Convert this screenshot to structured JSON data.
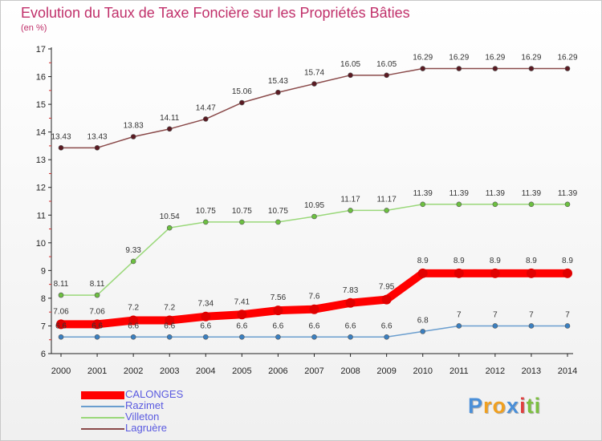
{
  "title": "Evolution du Taux de Taxe Foncière sur les Propriétés Bâties",
  "y_unit_label": "(en %)",
  "logo": {
    "text": "Proxiti",
    "letters": [
      {
        "ch": "P",
        "color": "#4a8fd8"
      },
      {
        "ch": "r",
        "color": "#f0a020"
      },
      {
        "ch": "o",
        "color": "#f0a020"
      },
      {
        "ch": "x",
        "color": "#4a8fd8"
      },
      {
        "ch": "i",
        "color": "#e04040"
      },
      {
        "ch": "t",
        "color": "#7cc040"
      },
      {
        "ch": "i",
        "color": "#7cc040"
      }
    ]
  },
  "chart_data": {
    "type": "line",
    "title": "Evolution du Taux de Taxe Foncière sur les Propriétés Bâties",
    "xlabel": "",
    "ylabel": "(en %)",
    "ylim": [
      6,
      17
    ],
    "yticks": [
      6,
      7,
      8,
      9,
      10,
      11,
      12,
      13,
      14,
      15,
      16,
      17
    ],
    "categories": [
      "2000",
      "2001",
      "2002",
      "2003",
      "2004",
      "2005",
      "2006",
      "2007",
      "2008",
      "2009",
      "2010",
      "2011",
      "2012",
      "2013",
      "2014"
    ],
    "series": [
      {
        "name": "CALONGES",
        "color": "#ff0000",
        "marker_color": "#e00000",
        "emphasis": true,
        "values": [
          7.06,
          7.06,
          7.2,
          7.2,
          7.34,
          7.41,
          7.56,
          7.6,
          7.83,
          7.95,
          8.9,
          8.9,
          8.9,
          8.9,
          8.9
        ],
        "labels": [
          "7.06",
          "7.06",
          "7.2",
          "7.2",
          "7.34",
          "7.41",
          "7.56",
          "7.6",
          "7.83",
          "7.95",
          "8.9",
          "8.9",
          "8.9",
          "8.9",
          "8.9"
        ]
      },
      {
        "name": "Razimet",
        "color": "#6a9ecf",
        "marker_color": "#3a7fc0",
        "emphasis": false,
        "values": [
          6.6,
          6.6,
          6.6,
          6.6,
          6.6,
          6.6,
          6.6,
          6.6,
          6.6,
          6.6,
          6.8,
          7,
          7,
          7,
          7
        ],
        "labels": [
          "6.6",
          "6.6",
          "6.6",
          "6.6",
          "6.6",
          "6.6",
          "6.6",
          "6.6",
          "6.6",
          "6.6",
          "6.8",
          "7",
          "7",
          "7",
          "7"
        ]
      },
      {
        "name": "Villeton",
        "color": "#9ad87a",
        "marker_color": "#6cc040",
        "emphasis": false,
        "values": [
          8.11,
          8.11,
          9.33,
          10.54,
          10.75,
          10.75,
          10.75,
          10.95,
          11.17,
          11.17,
          11.39,
          11.39,
          11.39,
          11.39,
          11.39
        ],
        "labels": [
          "8.11",
          "8.11",
          "9.33",
          "10.54",
          "10.75",
          "10.75",
          "10.75",
          "10.95",
          "11.17",
          "11.17",
          "11.39",
          "11.39",
          "11.39",
          "11.39",
          "11.39"
        ]
      },
      {
        "name": "Lagruère",
        "color": "#8a4a4a",
        "marker_color": "#5a1a22",
        "emphasis": false,
        "values": [
          13.43,
          13.43,
          13.83,
          14.11,
          14.47,
          15.06,
          15.43,
          15.74,
          16.05,
          16.05,
          16.29,
          16.29,
          16.29,
          16.29,
          16.29
        ],
        "labels": [
          "13.43",
          "13.43",
          "13.83",
          "14.11",
          "14.47",
          "15.06",
          "15.43",
          "15.74",
          "16.05",
          "16.05",
          "16.29",
          "16.29",
          "16.29",
          "16.29",
          "16.29"
        ]
      }
    ],
    "legend_position": "bottom-left"
  }
}
